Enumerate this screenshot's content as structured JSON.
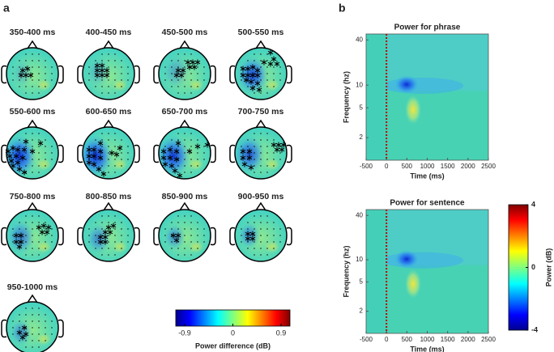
{
  "panel_a": {
    "label": "a",
    "topoplots": [
      {
        "title": "350-400 ms"
      },
      {
        "title": "400-450 ms"
      },
      {
        "title": "450-500 ms"
      },
      {
        "title": "500-550 ms"
      },
      {
        "title": "550-600 ms"
      },
      {
        "title": "600-650 ms"
      },
      {
        "title": "650-700 ms"
      },
      {
        "title": "700-750 ms"
      },
      {
        "title": "750-800 ms"
      },
      {
        "title": "800-850 ms"
      },
      {
        "title": "850-900 ms"
      },
      {
        "title": "900-950 ms"
      },
      {
        "title": "950-1000 ms"
      }
    ],
    "colorbar": {
      "label": "Power difference (dB)",
      "lim": [
        -0.9,
        0.9
      ],
      "ticks": [
        -0.9,
        0,
        0.9
      ]
    }
  },
  "panel_b": {
    "label": "b",
    "plots": [
      {
        "title": "Power for phrase",
        "xlabel": "Time (ms)",
        "ylabel": "Frequency (hz)",
        "xlim": [
          -500,
          2500
        ],
        "xticks": [
          -500,
          0,
          500,
          1000,
          1500,
          2000,
          2500
        ],
        "ylim": [
          1,
          48
        ],
        "yticks": [
          2,
          5,
          10,
          40
        ],
        "log_scale": true
      },
      {
        "title": "Power for sentence",
        "xlabel": "Time (ms)",
        "ylabel": "Frequency (hz)",
        "xlim": [
          -500,
          2500
        ],
        "xticks": [
          -500,
          0,
          500,
          1000,
          1500,
          2000,
          2500
        ],
        "ylim": [
          1,
          48
        ],
        "yticks": [
          2,
          5,
          10,
          40
        ],
        "log_scale": true
      }
    ],
    "colorbar": {
      "label": "Power (dB)",
      "lim": [
        -4,
        4
      ],
      "ticks": [
        -4,
        0,
        4
      ]
    }
  }
}
